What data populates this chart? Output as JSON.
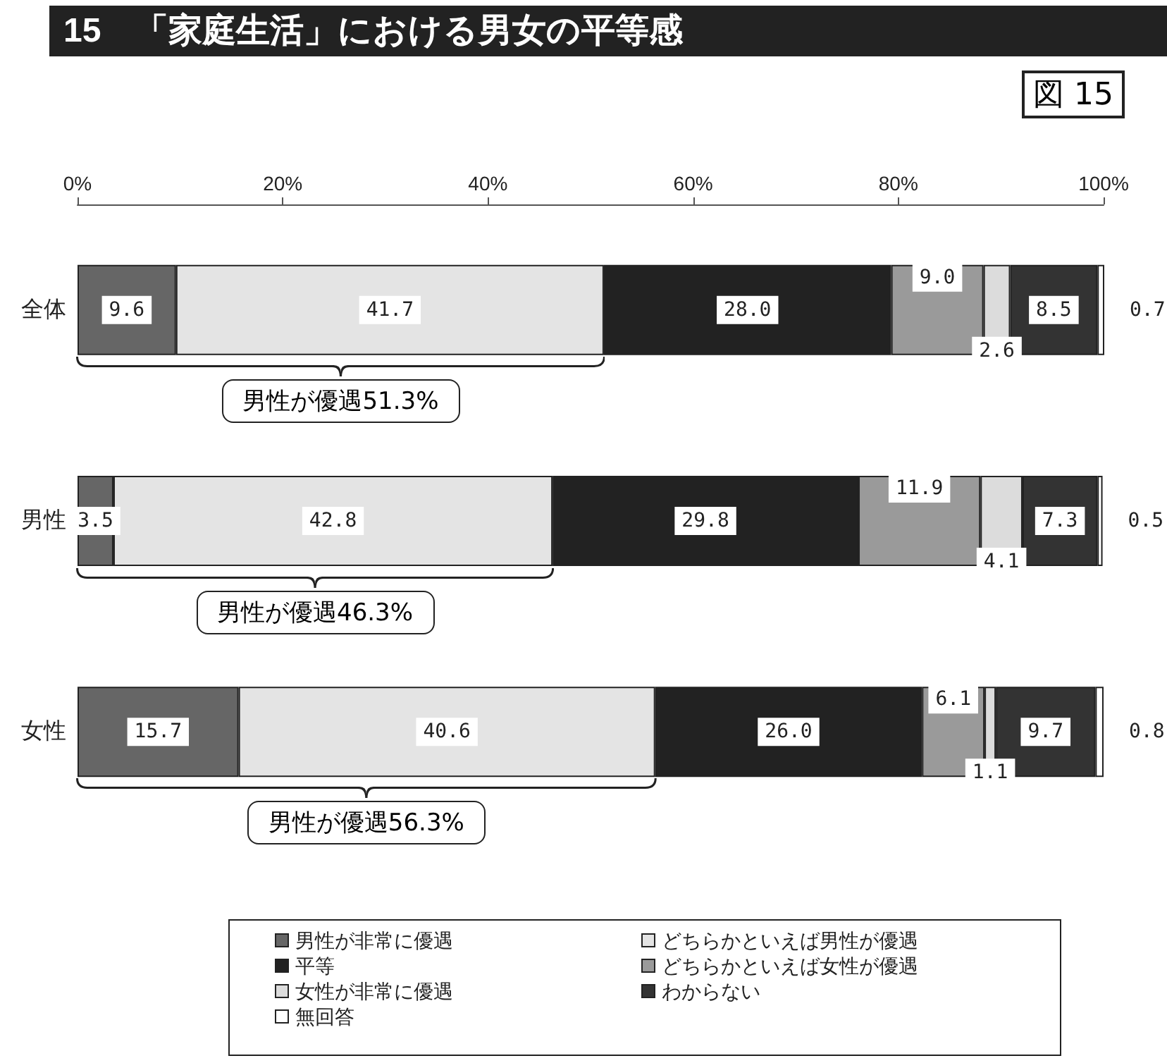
{
  "chart_data": {
    "type": "bar",
    "orientation": "horizontal",
    "stacked": true,
    "title": "15　「家庭生活」における男女の平等感",
    "categories": [
      "全体",
      "男性",
      "女性"
    ],
    "series": [
      {
        "name": "男性が非常に優遇",
        "color": "#666666",
        "values": [
          9.6,
          3.5,
          15.7
        ],
        "value_labels": [
          "9.6",
          "3.5",
          "15.7"
        ]
      },
      {
        "name": "どちらかといえば男性が優遇",
        "color": "#e4e4e4",
        "values": [
          41.7,
          42.8,
          40.6
        ],
        "value_labels": [
          "41.7",
          "42.8",
          "40.6"
        ]
      },
      {
        "name": "平等",
        "color": "#222222",
        "values": [
          28.0,
          29.8,
          26.0
        ],
        "value_labels": [
          "28.0",
          "29.8",
          "26.0"
        ]
      },
      {
        "name": "どちらかといえば女性が優遇",
        "color": "#9a9a9a",
        "values": [
          9.0,
          11.9,
          6.1
        ],
        "value_labels": [
          "9.0",
          "11.9",
          "6.1"
        ]
      },
      {
        "name": "女性が非常に優遇",
        "color": "#dcdcdc",
        "values": [
          2.6,
          4.1,
          1.1
        ],
        "value_labels": [
          "2.6",
          "4.1",
          "1.1"
        ]
      },
      {
        "name": "わからない",
        "color": "#333333",
        "values": [
          8.5,
          7.3,
          9.7
        ],
        "value_labels": [
          "8.5",
          "7.3",
          "9.7"
        ]
      },
      {
        "name": "無回答",
        "color": "#ffffff",
        "values": [
          0.7,
          0.5,
          0.8
        ],
        "value_labels": [
          "0.7",
          "0.5",
          "0.8"
        ]
      }
    ],
    "xlim": [
      0,
      100
    ],
    "xticks": [
      {
        "value": 0,
        "label": "0%"
      },
      {
        "value": 20,
        "label": "20%"
      },
      {
        "value": 40,
        "label": "40%"
      },
      {
        "value": 60,
        "label": "60%"
      },
      {
        "value": 80,
        "label": "80%"
      },
      {
        "value": 100,
        "label": "100%"
      }
    ],
    "grid": false,
    "legend": "bottom",
    "annotations": [
      "図 15",
      "男性が優遇51.3%",
      "男性が優遇46.3%",
      "男性が優遇56.3%"
    ]
  }
}
